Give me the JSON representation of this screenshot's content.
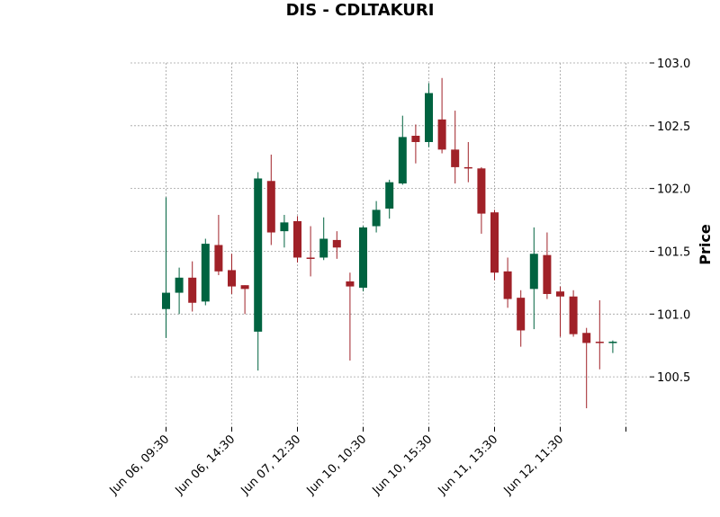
{
  "chart_data": {
    "type": "candlestick",
    "title": "DIS - CDLTAKURI",
    "ylabel": "Price",
    "xlabel": "",
    "ylim": [
      100.1,
      103.0
    ],
    "yticks": [
      100.5,
      101.0,
      101.5,
      102.0,
      102.5,
      103.0
    ],
    "ytick_labels": [
      "100.5",
      "101.0",
      "101.5",
      "102.0",
      "102.5",
      "103.0"
    ],
    "grid": true,
    "y_axis_position": "right",
    "x_tick_labels": [
      {
        "index": 0,
        "label": "Jun 06, 09:30"
      },
      {
        "index": 5,
        "label": "Jun 06, 14:30"
      },
      {
        "index": 10,
        "label": "Jun 07, 12:30"
      },
      {
        "index": 15,
        "label": "Jun 10, 10:30"
      },
      {
        "index": 20,
        "label": "Jun 10, 15:30"
      },
      {
        "index": 25,
        "label": "Jun 11, 13:30"
      },
      {
        "index": 30,
        "label": "Jun 12, 11:30"
      },
      {
        "index": 35,
        "label": ""
      }
    ],
    "up_color": "#006340",
    "down_color": "#a02128",
    "candles": [
      {
        "o": 101.04,
        "h": 101.93,
        "l": 100.81,
        "c": 101.17
      },
      {
        "o": 101.17,
        "h": 101.37,
        "l": 101.0,
        "c": 101.29
      },
      {
        "o": 101.29,
        "h": 101.42,
        "l": 101.02,
        "c": 101.09
      },
      {
        "o": 101.1,
        "h": 101.6,
        "l": 101.07,
        "c": 101.56
      },
      {
        "o": 101.55,
        "h": 101.79,
        "l": 101.31,
        "c": 101.34
      },
      {
        "o": 101.35,
        "h": 101.48,
        "l": 101.16,
        "c": 101.22
      },
      {
        "o": 101.23,
        "h": 101.23,
        "l": 101.0,
        "c": 101.2
      },
      {
        "o": 100.86,
        "h": 102.13,
        "l": 100.55,
        "c": 102.08
      },
      {
        "o": 102.06,
        "h": 102.27,
        "l": 101.55,
        "c": 101.65
      },
      {
        "o": 101.66,
        "h": 101.79,
        "l": 101.53,
        "c": 101.73
      },
      {
        "o": 101.74,
        "h": 101.78,
        "l": 101.41,
        "c": 101.45
      },
      {
        "o": 101.45,
        "h": 101.7,
        "l": 101.3,
        "c": 101.44
      },
      {
        "o": 101.45,
        "h": 101.77,
        "l": 101.43,
        "c": 101.6
      },
      {
        "o": 101.59,
        "h": 101.66,
        "l": 101.44,
        "c": 101.53
      },
      {
        "o": 101.26,
        "h": 101.33,
        "l": 100.63,
        "c": 101.22
      },
      {
        "o": 101.21,
        "h": 101.7,
        "l": 101.18,
        "c": 101.69
      },
      {
        "o": 101.7,
        "h": 101.9,
        "l": 101.65,
        "c": 101.83
      },
      {
        "o": 101.84,
        "h": 102.07,
        "l": 101.76,
        "c": 102.05
      },
      {
        "o": 102.04,
        "h": 102.58,
        "l": 102.03,
        "c": 102.41
      },
      {
        "o": 102.42,
        "h": 102.51,
        "l": 102.2,
        "c": 102.37
      },
      {
        "o": 102.37,
        "h": 102.84,
        "l": 102.33,
        "c": 102.76
      },
      {
        "o": 102.55,
        "h": 102.88,
        "l": 102.28,
        "c": 102.31
      },
      {
        "o": 102.31,
        "h": 102.62,
        "l": 102.04,
        "c": 102.17
      },
      {
        "o": 102.17,
        "h": 102.37,
        "l": 102.05,
        "c": 102.16
      },
      {
        "o": 102.16,
        "h": 102.17,
        "l": 101.64,
        "c": 101.8
      },
      {
        "o": 101.81,
        "h": 101.83,
        "l": 101.27,
        "c": 101.33
      },
      {
        "o": 101.34,
        "h": 101.45,
        "l": 101.05,
        "c": 101.12
      },
      {
        "o": 101.13,
        "h": 101.19,
        "l": 100.74,
        "c": 100.87
      },
      {
        "o": 101.2,
        "h": 101.69,
        "l": 100.88,
        "c": 101.48
      },
      {
        "o": 101.47,
        "h": 101.65,
        "l": 101.12,
        "c": 101.16
      },
      {
        "o": 101.18,
        "h": 101.22,
        "l": 100.82,
        "c": 101.14
      },
      {
        "o": 101.14,
        "h": 101.19,
        "l": 100.82,
        "c": 100.84
      },
      {
        "o": 100.85,
        "h": 100.89,
        "l": 100.25,
        "c": 100.77
      },
      {
        "o": 100.78,
        "h": 101.11,
        "l": 100.56,
        "c": 100.77
      },
      {
        "o": 100.77,
        "h": 100.79,
        "l": 100.69,
        "c": 100.78
      }
    ]
  }
}
